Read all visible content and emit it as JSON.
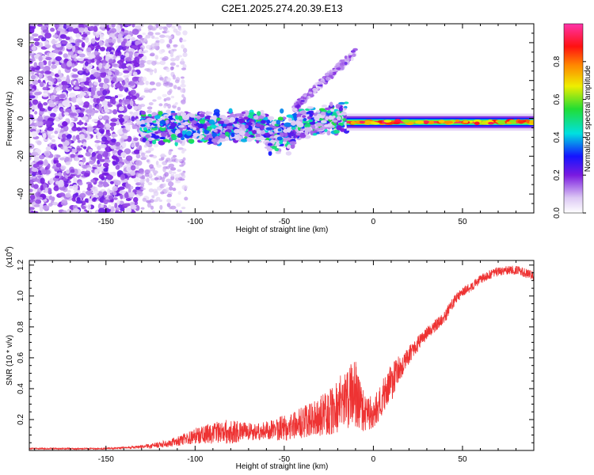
{
  "chart_data": [
    {
      "type": "heatmap",
      "title": "C2E1.2025.274.20.39.E13",
      "xlabel": "Height of straight line (km)",
      "ylabel": "Frequency (Hz)",
      "xlim": [
        -193,
        90
      ],
      "ylim": [
        -50,
        50
      ],
      "xticks": [
        -150,
        -100,
        -50,
        0,
        50
      ],
      "yticks": [
        -40,
        -20,
        0,
        20,
        40
      ],
      "colorbar": {
        "label": "Normalized spectral amplitude",
        "range": [
          0,
          1
        ],
        "ticks": [
          0.0,
          0.2,
          0.4,
          0.6,
          0.8
        ]
      },
      "features": [
        {
          "name": "diffuse noise",
          "x_range": [
            -193,
            -130
          ],
          "freq_range": [
            -50,
            50
          ],
          "amplitude": 0.15
        },
        {
          "name": "broadband band",
          "x_range": [
            -130,
            -15
          ],
          "freq_range": [
            -15,
            7
          ],
          "amplitude": 0.3
        },
        {
          "name": "rising branch",
          "x_range": [
            -45,
            -10
          ],
          "freq_start": 5,
          "freq_end": 35,
          "amplitude": 0.15
        },
        {
          "name": "narrow tone",
          "x_range": [
            -15,
            90
          ],
          "freq_center": -2,
          "amplitude": 0.95
        }
      ]
    },
    {
      "type": "line",
      "title": "",
      "xlabel": "Height of straight line (km)",
      "ylabel": "SNR (10 * v/v)",
      "y_multiplier": "(x10",
      "y_exponent": "4",
      "xlim": [
        -193,
        90
      ],
      "ylim": [
        0,
        1.23
      ],
      "xticks": [
        -150,
        -100,
        -50,
        0,
        50
      ],
      "yticks": [
        0.2,
        0.4,
        0.6,
        0.8,
        1.0,
        1.2
      ],
      "color": "#ee3333",
      "envelope": {
        "x": [
          -193,
          -150,
          -130,
          -120,
          -110,
          -100,
          -90,
          -80,
          -70,
          -60,
          -50,
          -40,
          -30,
          -25,
          -20,
          -15,
          -10,
          -5,
          0,
          5,
          10,
          15,
          20,
          30,
          40,
          45,
          50,
          55,
          60,
          70,
          80,
          90
        ],
        "base": [
          0.01,
          0.01,
          0.02,
          0.03,
          0.05,
          0.08,
          0.09,
          0.1,
          0.1,
          0.11,
          0.12,
          0.15,
          0.18,
          0.2,
          0.23,
          0.28,
          0.3,
          0.2,
          0.22,
          0.3,
          0.4,
          0.5,
          0.6,
          0.75,
          0.85,
          0.95,
          1.02,
          1.05,
          1.1,
          1.15,
          1.16,
          1.12
        ],
        "jitter": [
          0.005,
          0.005,
          0.01,
          0.02,
          0.03,
          0.05,
          0.07,
          0.08,
          0.06,
          0.06,
          0.09,
          0.1,
          0.13,
          0.15,
          0.18,
          0.2,
          0.22,
          0.12,
          0.1,
          0.12,
          0.12,
          0.1,
          0.06,
          0.04,
          0.04,
          0.04,
          0.03,
          0.03,
          0.03,
          0.03,
          0.03,
          0.03
        ]
      }
    }
  ]
}
